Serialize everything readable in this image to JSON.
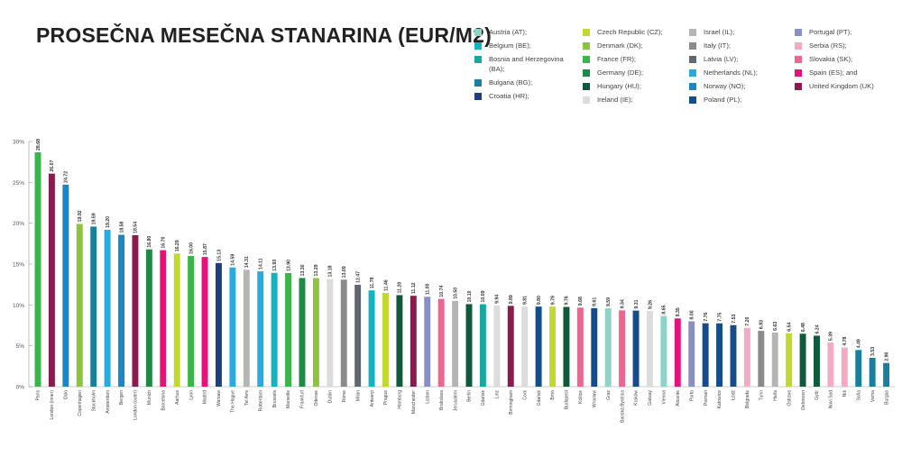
{
  "title": "PROSEČNA MESEČNA STANARINA (EUR/M2)",
  "legend": [
    [
      {
        "label": "Austria (AT);",
        "color": "#8fd3c8"
      },
      {
        "label": "Belgium (BE);",
        "color": "#13b3c2"
      },
      {
        "label": "Bosnia and Herzegovina (BA);",
        "color": "#17a8a0"
      },
      {
        "label": "Bulgaria (BG);",
        "color": "#1a7f9c"
      },
      {
        "label": "Croatia (HR);",
        "color": "#1d3f7f"
      }
    ],
    [
      {
        "label": "Czech Republic (CZ);",
        "color": "#c3d82f"
      },
      {
        "label": "Denmark (DK);",
        "color": "#8cc43f"
      },
      {
        "label": "France (FR);",
        "color": "#39b54a"
      },
      {
        "label": "Germany (DE);",
        "color": "#1f8a45"
      },
      {
        "label": "Hungary (HU);",
        "color": "#0e5a3a"
      },
      {
        "label": "Ireland (IE);",
        "color": "#dcdcdc"
      }
    ],
    [
      {
        "label": "Israel (IL);",
        "color": "#b5b5b5"
      },
      {
        "label": "Italy (IT);",
        "color": "#8a8a8a"
      },
      {
        "label": "Latvia (LV);",
        "color": "#5f6770"
      },
      {
        "label": "Netherlands (NL);",
        "color": "#29abe2"
      },
      {
        "label": "Norway (NO);",
        "color": "#1a86c8"
      },
      {
        "label": "Poland (PL);",
        "color": "#154c8c"
      }
    ],
    [
      {
        "label": "Portugal (PT);",
        "color": "#8a8fc2"
      },
      {
        "label": "Serbia (RS);",
        "color": "#f4a9c4"
      },
      {
        "label": "Slovakia (SK);",
        "color": "#e8688f"
      },
      {
        "label": "Spain (ES); and",
        "color": "#e6127a"
      },
      {
        "label": "United Kingdom (UK)",
        "color": "#8b1a4f"
      }
    ]
  ],
  "chart_data": {
    "type": "bar",
    "title": "PROSEČNA MESEČNA STANARINA (EUR/M2)",
    "xlabel": "",
    "ylabel": "",
    "ylim": [
      0,
      30
    ],
    "yticks": [
      "0%",
      "5%",
      "10%",
      "15%",
      "20%",
      "25%",
      "30%"
    ],
    "categories": [
      "Paris",
      "London (inner)",
      "Oslo",
      "Copenhagen",
      "Stockholm",
      "Amsterdam",
      "Bergen",
      "London (outer)",
      "Munich",
      "Barcelona",
      "Aarhus",
      "Lyon",
      "Madrid",
      "Warsaw",
      "The Hague",
      "Tel Aviv",
      "Rotterdam",
      "Brussels",
      "Marseille",
      "Frankfurt",
      "Odense",
      "Dublin",
      "Rome",
      "Milan",
      "Antwerp",
      "Prague",
      "Hamburg",
      "Manchester",
      "Lisbon",
      "Bratislava",
      "Jerusalem",
      "Berlin",
      "Gdańsk",
      "Linz",
      "Birmingham",
      "Cork",
      "Gdańsk",
      "Brno",
      "Budapest",
      "Košice",
      "Wrocław",
      "Graz",
      "Banská Bystrica",
      "Kraków",
      "Galway",
      "Vienna",
      "Alicante",
      "Porto",
      "Poznań",
      "Katowice",
      "Łódź",
      "Belgrade",
      "Turin",
      "Haifa",
      "Ostrava",
      "Debrecen",
      "Győr",
      "Novi Sad",
      "Niš",
      "Sofia",
      "Varna",
      "Burgas"
    ],
    "values": [
      28.68,
      26.07,
      24.72,
      19.92,
      19.59,
      19.2,
      18.58,
      18.54,
      16.8,
      16.7,
      16.29,
      16.0,
      15.87,
      15.13,
      14.59,
      14.31,
      14.11,
      13.93,
      13.9,
      13.3,
      13.29,
      13.18,
      13.09,
      12.47,
      11.78,
      11.46,
      11.2,
      11.12,
      11.0,
      10.74,
      10.5,
      10.1,
      10.09,
      9.94,
      9.89,
      9.81,
      9.8,
      9.79,
      9.76,
      9.68,
      9.61,
      9.59,
      9.34,
      9.31,
      9.26,
      8.65,
      8.35,
      8.0,
      7.76,
      7.75,
      7.53,
      7.2,
      6.83,
      6.63,
      6.54,
      6.48,
      6.24,
      5.39,
      4.78,
      4.49,
      3.53,
      2.9
    ],
    "colors": [
      "#39b54a",
      "#8b1a4f",
      "#1a86c8",
      "#8cc43f",
      "#1a7f9c",
      "#29abe2",
      "#1a86c8",
      "#8b1a4f",
      "#1f8a45",
      "#e6127a",
      "#c3d82f",
      "#39b54a",
      "#e6127a",
      "#1d3f7f",
      "#29abe2",
      "#b5b5b5",
      "#29abe2",
      "#13b3c2",
      "#39b54a",
      "#1f8a45",
      "#8cc43f",
      "#dcdcdc",
      "#8a8a8a",
      "#5f6770",
      "#13b3c2",
      "#c3d82f",
      "#0e5a3a",
      "#8b1a4f",
      "#8a8fc2",
      "#e8688f",
      "#b5b5b5",
      "#0e5a3a",
      "#17a8a0",
      "#dcdcdc",
      "#8b1a4f",
      "#dcdcdc",
      "#154c8c",
      "#c3d82f",
      "#0e5a3a",
      "#e8688f",
      "#154c8c",
      "#8fd3c8",
      "#e8688f",
      "#154c8c",
      "#dcdcdc",
      "#8fd3c8",
      "#e6127a",
      "#8a8fc2",
      "#154c8c",
      "#154c8c",
      "#154c8c",
      "#f4a9c4",
      "#8a8a8a",
      "#b5b5b5",
      "#c3d82f",
      "#0e5a3a",
      "#0e5a3a",
      "#f4a9c4",
      "#f4a9c4",
      "#1a7f9c",
      "#1a7f9c",
      "#1a7f9c"
    ],
    "value_labels": [
      "28.68",
      "26.07",
      "24.72",
      "19.92",
      "19.59",
      "19.20",
      "18.58",
      "18.54",
      "16.80",
      "16.70",
      "16.29",
      "16.00",
      "15.87",
      "15.13",
      "14.59",
      "14.31",
      "14.11",
      "13.93",
      "13.90",
      "13.30",
      "13.29",
      "13.18",
      "13.09",
      "12.47",
      "11.78",
      "11.46",
      "11.20",
      "11.12",
      "11.00",
      "10.74",
      "10.50",
      "10.10",
      "10.09",
      "9.94",
      "9.89",
      "9.81",
      "9.80",
      "9.79",
      "9.76",
      "9.68",
      "9.61",
      "9.59",
      "9.34",
      "9.31",
      "9.26",
      "8.65",
      "8.35",
      "8.00",
      "7.76",
      "7.75",
      "7.53",
      "7.20",
      "6.83",
      "6.63",
      "6.54",
      "6.48",
      "6.24",
      "5.39",
      "4.78",
      "4.49",
      "3.53",
      "2.90"
    ]
  }
}
